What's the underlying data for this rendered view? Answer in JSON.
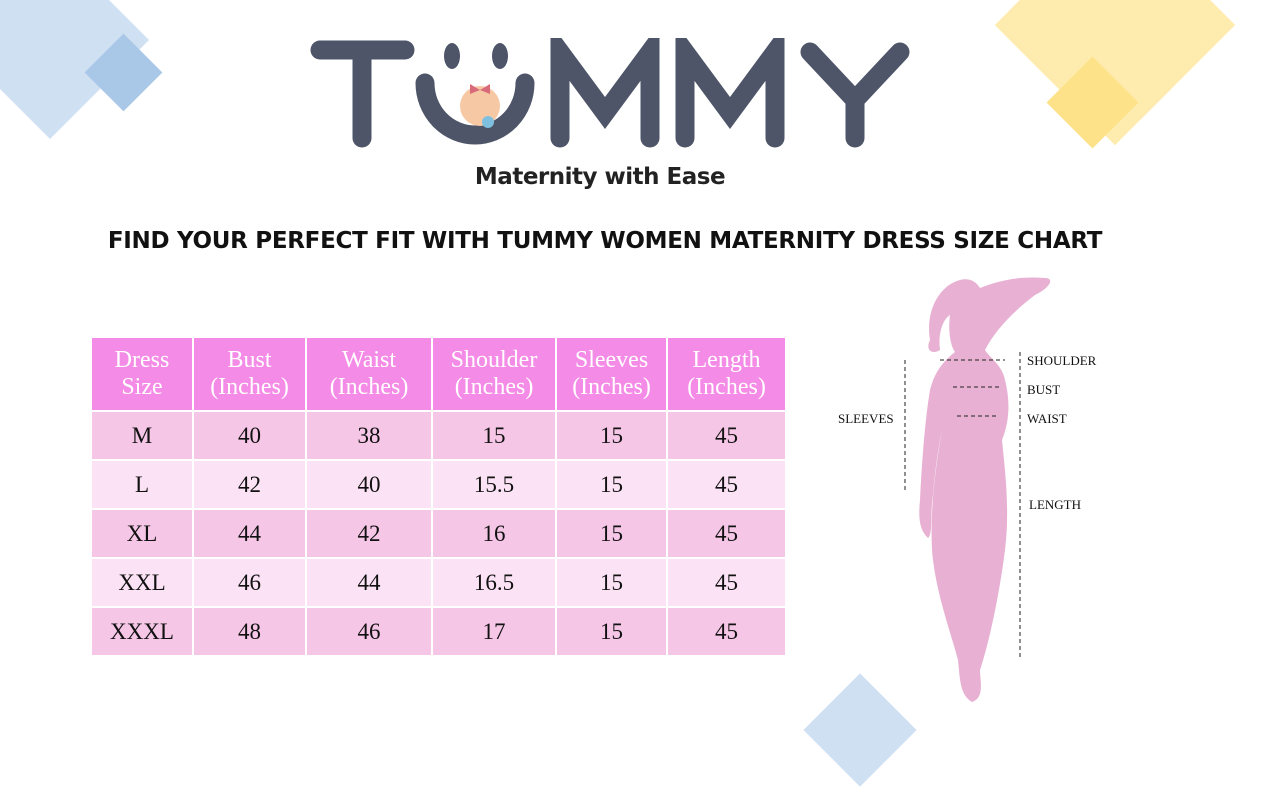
{
  "brand": {
    "name": "TUMMY",
    "tagline": "Maternity with Ease"
  },
  "headline": "FIND YOUR PERFECT FIT WITH TUMMY WOMEN MATERNITY DRESS SIZE CHART",
  "colors": {
    "logo": "#4e5568",
    "header": "#f48be6",
    "row_odd": "#f5c6e6",
    "row_even": "#fbe3f5",
    "figure": "#e8b1d3"
  },
  "chart_data": {
    "type": "table",
    "columns": [
      [
        "Dress",
        "Size"
      ],
      [
        "Bust",
        "(Inches)"
      ],
      [
        "Waist",
        "(Inches)"
      ],
      [
        "Shoulder",
        "(Inches)"
      ],
      [
        "Sleeves",
        "(Inches)"
      ],
      [
        "Length",
        "(Inches)"
      ]
    ],
    "rows": [
      [
        "M",
        "40",
        "38",
        "15",
        "15",
        "45"
      ],
      [
        "L",
        "42",
        "40",
        "15.5",
        "15",
        "45"
      ],
      [
        "XL",
        "44",
        "42",
        "16",
        "15",
        "45"
      ],
      [
        "XXL",
        "46",
        "44",
        "16.5",
        "15",
        "45"
      ],
      [
        "XXXL",
        "48",
        "46",
        "17",
        "15",
        "45"
      ]
    ]
  },
  "figure_labels": {
    "shoulder": "SHOULDER",
    "bust": "BUST",
    "waist": "WAIST",
    "sleeves": "SLEEVES",
    "length": "LENGTH"
  }
}
